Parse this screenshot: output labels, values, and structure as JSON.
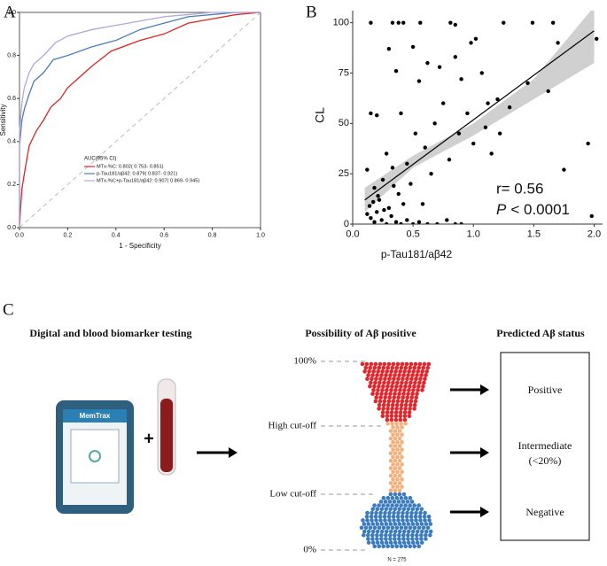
{
  "chart_data": [
    {
      "type": "line",
      "label": "A",
      "xlabel": "1 - Specificity",
      "ylabel": "Sensitivity",
      "legend_title": "AUC(95% CI)",
      "xlim": [
        0,
        1
      ],
      "ylim": [
        0,
        1
      ],
      "xticks": [
        {
          "value": 0,
          "label": "0.0"
        },
        0.2,
        0.4,
        0.6,
        0.8,
        {
          "value": 1,
          "label": "1.0"
        }
      ],
      "yticks": [
        {
          "value": 0,
          "label": "0.0"
        },
        0.2,
        0.4,
        0.6,
        0.8,
        {
          "value": 1,
          "label": "1.0"
        }
      ],
      "legend": "lower right",
      "series": [
        {
          "name": "MTx-%C: 0.802( 0.753- 0.851)",
          "color": "#e02424",
          "x": [
            0,
            0.005,
            0.01,
            0.02,
            0.04,
            0.07,
            0.1,
            0.13,
            0.17,
            0.2,
            0.25,
            0.3,
            0.38,
            0.5,
            0.6,
            0.7,
            0.8,
            0.9,
            1.0
          ],
          "values": [
            0,
            0.1,
            0.18,
            0.25,
            0.38,
            0.45,
            0.5,
            0.56,
            0.6,
            0.65,
            0.7,
            0.75,
            0.82,
            0.87,
            0.9,
            0.95,
            0.97,
            0.99,
            1.0
          ]
        },
        {
          "name": "p-Tau181/aβ42: 0.879( 0.837- 0.921)",
          "color": "#4a7fb5",
          "x": [
            0,
            0,
            0.01,
            0.02,
            0.04,
            0.06,
            0.1,
            0.14,
            0.2,
            0.3,
            0.4,
            0.5,
            0.6,
            0.7,
            0.8,
            0.9,
            1.0
          ],
          "values": [
            0,
            0.38,
            0.5,
            0.55,
            0.62,
            0.68,
            0.72,
            0.78,
            0.8,
            0.84,
            0.87,
            0.92,
            0.95,
            0.98,
            0.99,
            1.0,
            1.0
          ]
        },
        {
          "name": "MTx-%C+p-Tau181/aβ42: 0.907( 0.869- 0.945)",
          "color": "#b3a7d9",
          "x": [
            0,
            0,
            0.01,
            0.02,
            0.04,
            0.06,
            0.1,
            0.15,
            0.2,
            0.3,
            0.4,
            0.5,
            0.6,
            0.7,
            0.8,
            0.9,
            1.0
          ],
          "values": [
            0,
            0.45,
            0.58,
            0.65,
            0.72,
            0.76,
            0.8,
            0.86,
            0.89,
            0.92,
            0.94,
            0.96,
            0.98,
            0.99,
            1.0,
            1.0,
            1.0
          ]
        }
      ]
    },
    {
      "type": "scatter",
      "label": "B",
      "xlabel": "p-Tau181/aβ42",
      "ylabel": "CL",
      "color": "#000000",
      "xlim": [
        0,
        2.07
      ],
      "ylim": [
        0,
        106
      ],
      "xticks": [
        {
          "value": 0,
          "label": "0.0"
        },
        0.5,
        {
          "value": 1,
          "label": "1.0"
        },
        1.5,
        {
          "value": 2,
          "label": "2.0"
        }
      ],
      "yticks": [
        0,
        25,
        50,
        75,
        100
      ],
      "annotations": [
        "r= 0.56"
      ],
      "p_annotation": {
        "symbol": "P",
        "text": "< 0.0001"
      },
      "x": [
        0.15,
        0.33,
        0.38,
        0.42,
        0.56,
        0.81,
        0.85,
        1.25,
        1.49,
        1.66,
        0.3,
        0.5,
        0.98,
        1.02,
        0.62,
        0.36,
        0.55,
        0.72,
        0.85,
        0.9,
        1.07,
        1.12,
        1.2,
        1.62,
        1.7,
        2.02,
        1.95,
        1.98,
        1.75,
        1.45,
        1.3,
        1.22,
        1.15,
        1.1,
        1.0,
        0.95,
        0.88,
        0.8,
        0.75,
        0.68,
        0.6,
        0.52,
        0.45,
        0.4,
        0.33,
        0.28,
        0.25,
        0.2,
        0.15,
        0.12,
        0.18,
        0.22,
        0.3,
        0.38,
        0.48,
        0.58,
        0.65,
        0.12,
        0.15,
        0.18,
        0.2,
        0.24,
        0.28,
        0.32,
        0.36,
        0.4,
        0.45,
        0.5,
        0.55,
        0.62,
        0.7,
        0.78,
        0.85,
        0.14,
        0.17,
        0.21,
        0.26,
        0.34,
        0.42,
        0.9
      ],
      "values": [
        100,
        100,
        100,
        100,
        100,
        100,
        99,
        100,
        100,
        100,
        87,
        88,
        90,
        92,
        80,
        76,
        71,
        78,
        83,
        72,
        75,
        60,
        62,
        66,
        90,
        92,
        40,
        4,
        27,
        70,
        58,
        45,
        35,
        48,
        40,
        55,
        45,
        32,
        60,
        50,
        38,
        45,
        30,
        55,
        28,
        35,
        22,
        54,
        55,
        27,
        18,
        12,
        8,
        15,
        20,
        10,
        25,
        5,
        3,
        1,
        6,
        2,
        0,
        4,
        1,
        0,
        2,
        0,
        1,
        0,
        0,
        2,
        0,
        9,
        11,
        14,
        7,
        19,
        10,
        0
      ],
      "fit": {
        "x": [
          0.1,
          2.0
        ],
        "values": [
          12,
          96
        ]
      },
      "band": {
        "x": [
          0.1,
          0.5,
          1.0,
          1.5,
          2.0
        ],
        "lower": [
          6,
          28,
          44,
          62,
          80
        ],
        "upper": [
          18,
          34,
          50,
          72,
          108
        ]
      }
    }
  ],
  "diagram": {
    "label": "C",
    "headings": [
      "Digital and blood biomarker testing",
      "Possibility of Aβ positive",
      "Predicted Aβ status"
    ],
    "scale_labels": [
      "100%",
      "High cut-off",
      "Low cut-off",
      "0%"
    ],
    "outcomes": [
      "Positive",
      "Intermediate",
      "(<20%)",
      "Negative"
    ],
    "sample_size": "N = 275",
    "device_label": "MemTrax"
  }
}
